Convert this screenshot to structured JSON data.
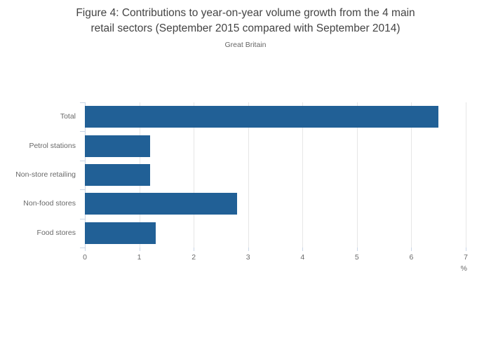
{
  "header": {
    "title_lines": [
      "Figure 4: Contributions to year-on-year volume growth from the 4 main",
      "retail sectors (September 2015 compared with September 2014)"
    ],
    "subtitle": "Great Britain"
  },
  "chart_data": {
    "type": "bar",
    "orientation": "horizontal",
    "title": "Figure 4: Contributions to year-on-year volume growth from the 4 main retail sectors (September 2015 compared with September 2014)",
    "subtitle": "Great Britain",
    "categories": [
      "Total",
      "Petrol stations",
      "Non-store retailing",
      "Non-food stores",
      "Food stores"
    ],
    "values": [
      6.5,
      1.2,
      1.2,
      2.8,
      1.3
    ],
    "xlabel": "%",
    "xlim": [
      0,
      7
    ],
    "xticks": [
      0,
      1,
      2,
      3,
      4,
      5,
      6,
      7
    ],
    "grid": true,
    "legend": "none",
    "colors": {
      "bar": "#216096",
      "gridline": "#e6e6e6",
      "axis": "#c9d5e6",
      "tick_label": "#696969",
      "title": "#444444",
      "subtitle": "#666666"
    }
  }
}
